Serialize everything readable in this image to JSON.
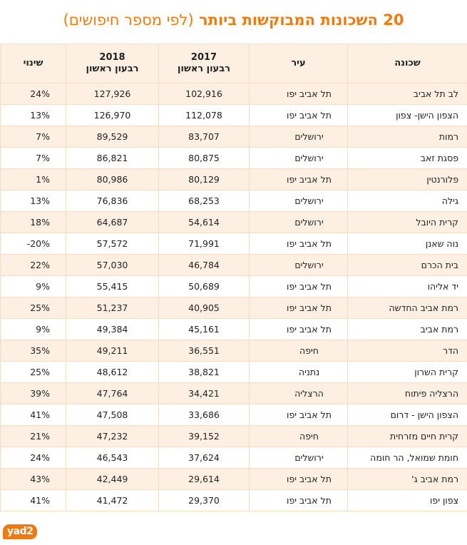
{
  "title": {
    "main": "20 השכונות המבוקשות ביותר",
    "sub": "(לפי מספר חיפושים)"
  },
  "table": {
    "headers": {
      "neighborhood": "שכונה",
      "city": "עיר",
      "y2017_year": "2017",
      "y2017_quarter": "רבעון ראשון",
      "y2018_year": "2018",
      "y2018_quarter": "רבעון ראשון",
      "change": "שינוי"
    },
    "rows": [
      {
        "hood": "לב תל אביב",
        "city": "תל אביב יפו",
        "y2017": "102,916",
        "y2018": "127,926",
        "change": "24%"
      },
      {
        "hood": "הצפון הישן- צפון",
        "city": "תל אביב יפו",
        "y2017": "112,078",
        "y2018": "126,970",
        "change": "13%"
      },
      {
        "hood": "רמות",
        "city": "ירושלים",
        "y2017": "83,707",
        "y2018": "89,529",
        "change": "7%"
      },
      {
        "hood": "פסגת זאב",
        "city": "ירושלים",
        "y2017": "80,875",
        "y2018": "86,821",
        "change": "7%"
      },
      {
        "hood": "פלורנטין",
        "city": "תל אביב יפו",
        "y2017": "80,129",
        "y2018": "80,986",
        "change": "1%"
      },
      {
        "hood": "גילה",
        "city": "ירושלים",
        "y2017": "68,253",
        "y2018": "76,836",
        "change": "13%"
      },
      {
        "hood": "קרית היובל",
        "city": "ירושלים",
        "y2017": "54,614",
        "y2018": "64,687",
        "change": "18%"
      },
      {
        "hood": "נוה שאנן",
        "city": "תל אביב יפו",
        "y2017": "71,991",
        "y2018": "57,572",
        "change": "-20%"
      },
      {
        "hood": "בית הכרם",
        "city": "ירושלים",
        "y2017": "46,784",
        "y2018": "57,030",
        "change": "22%"
      },
      {
        "hood": "יד אליהו",
        "city": "תל אביב יפו",
        "y2017": "50,689",
        "y2018": "55,415",
        "change": "9%"
      },
      {
        "hood": "רמת אביב החדשה",
        "city": "תל אביב יפו",
        "y2017": "40,905",
        "y2018": "51,237",
        "change": "25%"
      },
      {
        "hood": "רמת אביב",
        "city": "תל אביב יפו",
        "y2017": "45,161",
        "y2018": "49,384",
        "change": "9%"
      },
      {
        "hood": "הדר",
        "city": "חיפה",
        "y2017": "36,551",
        "y2018": "49,211",
        "change": "35%"
      },
      {
        "hood": "קרית השרון",
        "city": "נתניה",
        "y2017": "38,821",
        "y2018": "48,612",
        "change": "25%"
      },
      {
        "hood": "הרצליה פיתוח",
        "city": "הרצליה",
        "y2017": "34,421",
        "y2018": "47,764",
        "change": "39%"
      },
      {
        "hood": "הצפון הישן - דרום",
        "city": "תל אביב יפו",
        "y2017": "33,686",
        "y2018": "47,508",
        "change": "41%"
      },
      {
        "hood": "קרית חיים מזרחית",
        "city": "חיפה",
        "y2017": "39,152",
        "y2018": "47,232",
        "change": "21%"
      },
      {
        "hood": "חומת שמואל, הר חומה",
        "city": "ירושלים",
        "y2017": "37,624",
        "y2018": "46,543",
        "change": "24%"
      },
      {
        "hood": "רמת אביב ג'",
        "city": "תל אביב יפו",
        "y2017": "29,614",
        "y2018": "42,449",
        "change": "43%"
      },
      {
        "hood": "צפון יפו",
        "city": "תל אביב יפו",
        "y2017": "29,370",
        "y2018": "41,472",
        "change": "41%"
      }
    ]
  },
  "logo": {
    "text": "yad2",
    "color": "#f07a10"
  },
  "colors": {
    "accent": "#f07a10",
    "row_tint": "#fdf0e3",
    "border": "#f7dcc3"
  }
}
